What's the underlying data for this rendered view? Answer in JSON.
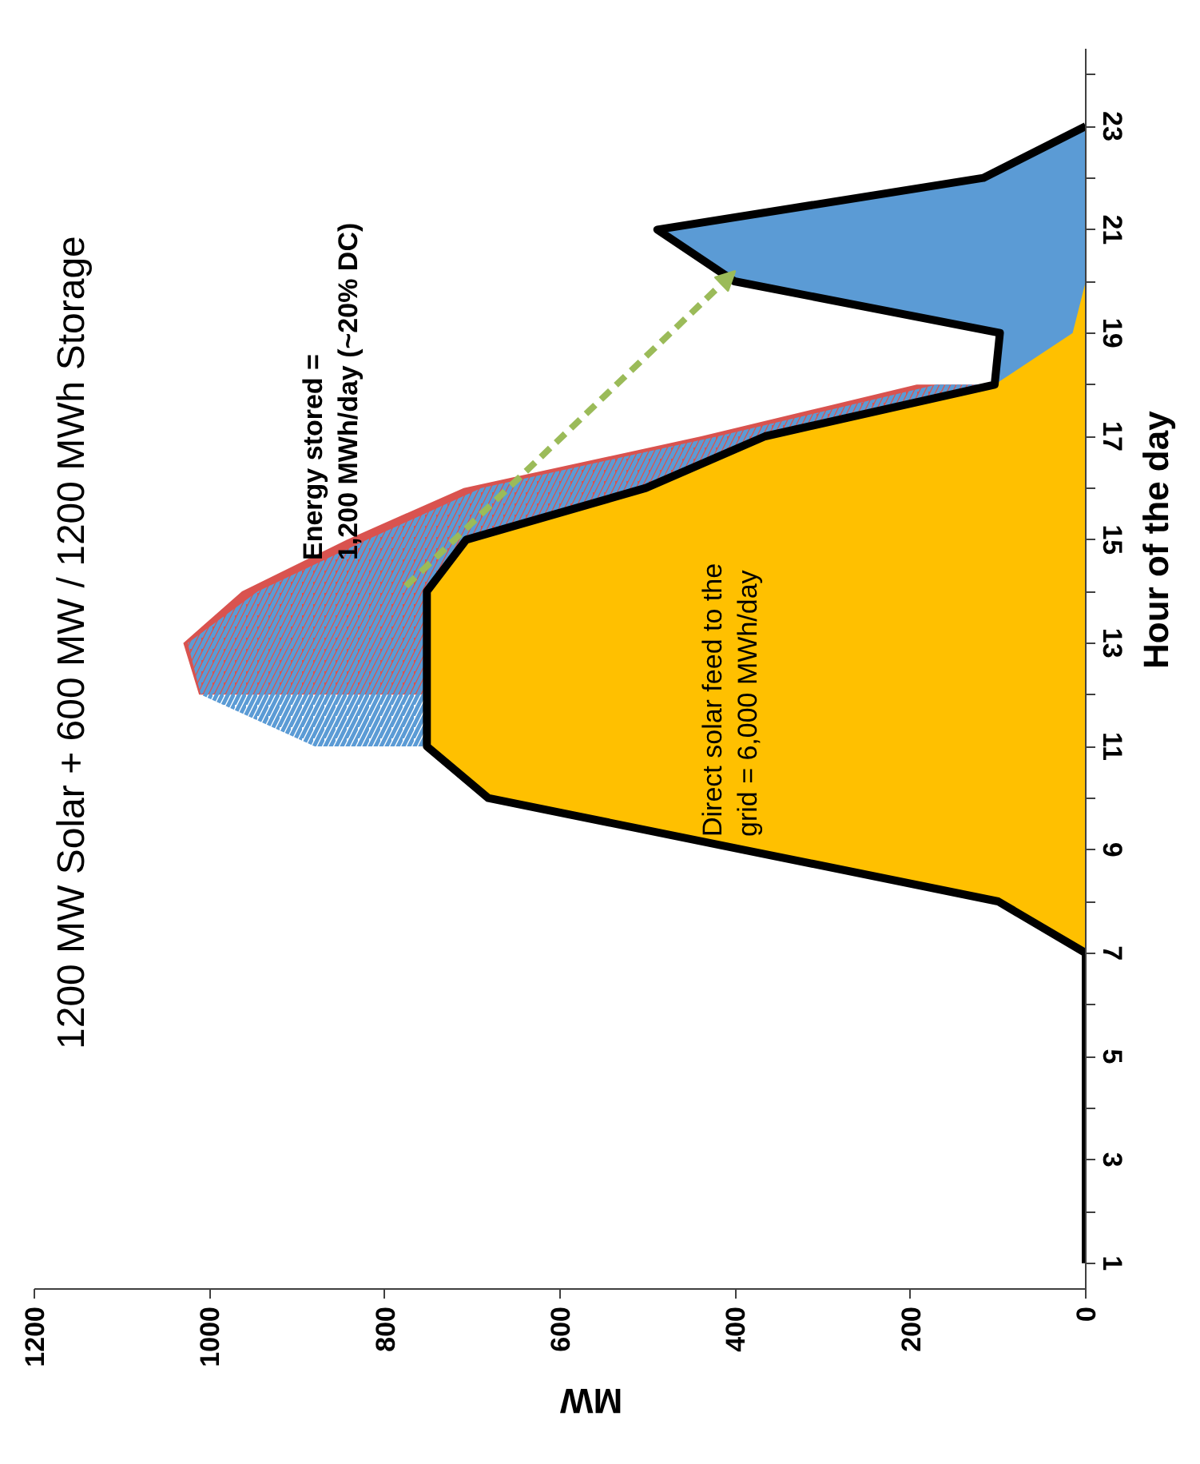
{
  "chart_data": {
    "type": "area",
    "orientation": "horizontal",
    "title": "1200 MW Solar + 600 MW / 1200 MWh Storage",
    "xlabel": "MW",
    "ylabel": "Hour of the day",
    "x": [
      1,
      2,
      3,
      4,
      5,
      6,
      7,
      8,
      9,
      10,
      11,
      12,
      13,
      14,
      15,
      16,
      17,
      18,
      19,
      20,
      21,
      22,
      23
    ],
    "ylim": [
      0.5,
      24.5
    ],
    "yticks": [
      1,
      {
        "value": 2,
        "label": null
      },
      3,
      {
        "value": 4,
        "label": null
      },
      5,
      {
        "value": 6,
        "label": null
      },
      7,
      {
        "value": 8,
        "label": null
      },
      9,
      {
        "value": 10,
        "label": null
      },
      11,
      {
        "value": 12,
        "label": null
      },
      13,
      {
        "value": 14,
        "label": null
      },
      15,
      {
        "value": 16,
        "label": null
      },
      17,
      {
        "value": 18,
        "label": null
      },
      19,
      {
        "value": 20,
        "label": null
      },
      21,
      {
        "value": 22,
        "label": null
      },
      23,
      {
        "value": 24,
        "label": null
      }
    ],
    "xlim": [
      1200,
      0
    ],
    "xticks": [
      1200,
      1000,
      800,
      600,
      400,
      200,
      0
    ],
    "series": [
      {
        "color": "#d9534f",
        "values": [
          null,
          null,
          null,
          null,
          null,
          null,
          null,
          null,
          null,
          null,
          null,
          1012,
          1030,
          963,
          843,
          710,
          439,
          193,
          null,
          null,
          null,
          null,
          null
        ]
      },
      {
        "color": "#5b9bd5",
        "values": [
          null,
          null,
          null,
          null,
          null,
          null,
          null,
          null,
          null,
          null,
          880,
          1010,
          1025,
          945,
          820,
          690,
          420,
          170,
          null,
          null,
          null,
          null,
          null
        ]
      },
      {
        "color": "#5b9bd5",
        "values": [
          null,
          null,
          null,
          null,
          null,
          null,
          null,
          null,
          null,
          null,
          null,
          null,
          null,
          null,
          null,
          null,
          null,
          104,
          98,
          401,
          489,
          117,
          0
        ]
      },
      {
        "color": "#ffc000",
        "values": [
          null,
          null,
          null,
          null,
          null,
          null,
          0,
          100,
          391,
          682,
          752,
          752,
          752,
          752,
          707,
          502,
          366,
          104,
          15,
          0,
          null,
          null,
          null
        ]
      },
      {
        "type": "line",
        "color": "#000000",
        "values": [
          0,
          0,
          0,
          0,
          0,
          0,
          0,
          100,
          391,
          682,
          752,
          752,
          752,
          752,
          707,
          502,
          366,
          104,
          98,
          401,
          489,
          117,
          0
        ]
      }
    ],
    "annotations": [
      "Energy stored =\n1,200 MWh/day (~20% DC)",
      "Direct solar feed to the\ngrid = 6,000 MWh/day"
    ],
    "grid": false
  }
}
